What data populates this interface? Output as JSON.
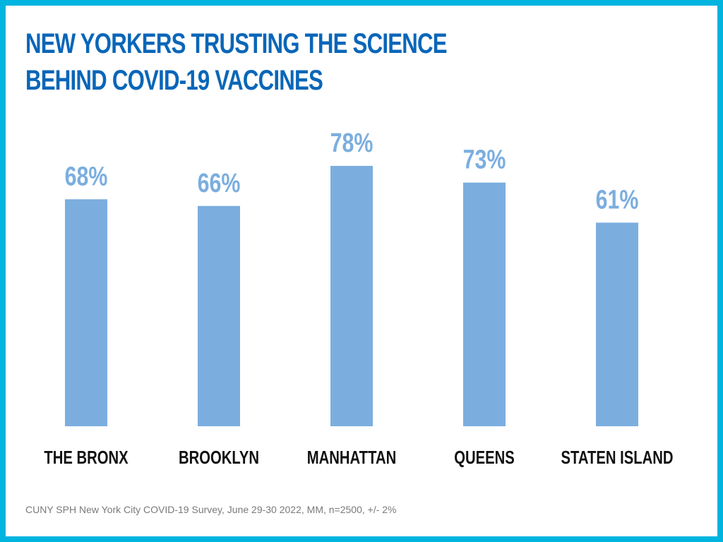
{
  "chart_data": {
    "type": "bar",
    "title_lines": [
      "NEW YORKERS TRUSTING THE SCIENCE",
      "BEHIND COVID-19 VACCINES"
    ],
    "categories": [
      "THE BRONX",
      "BROOKLYN",
      "MANHATTAN",
      "QUEENS",
      "STATEN ISLAND"
    ],
    "values": [
      68,
      66,
      78,
      73,
      61
    ],
    "value_labels": [
      "68%",
      "66%",
      "78%",
      "73%",
      "61%"
    ],
    "unit": "%",
    "bar_color": "#7BAEDF",
    "xlabel": "",
    "ylabel": "",
    "grid": false,
    "legend": "none"
  },
  "colors": {
    "border": "#00B4E0",
    "title": "#0A66B8",
    "bar": "#7BAEDF",
    "category_text": "#111111",
    "footnote_text": "#7a7a7a"
  },
  "footnote": "CUNY SPH New York City COVID-19 Survey, June 29-30 2022, MM, n=2500, +/- 2%"
}
